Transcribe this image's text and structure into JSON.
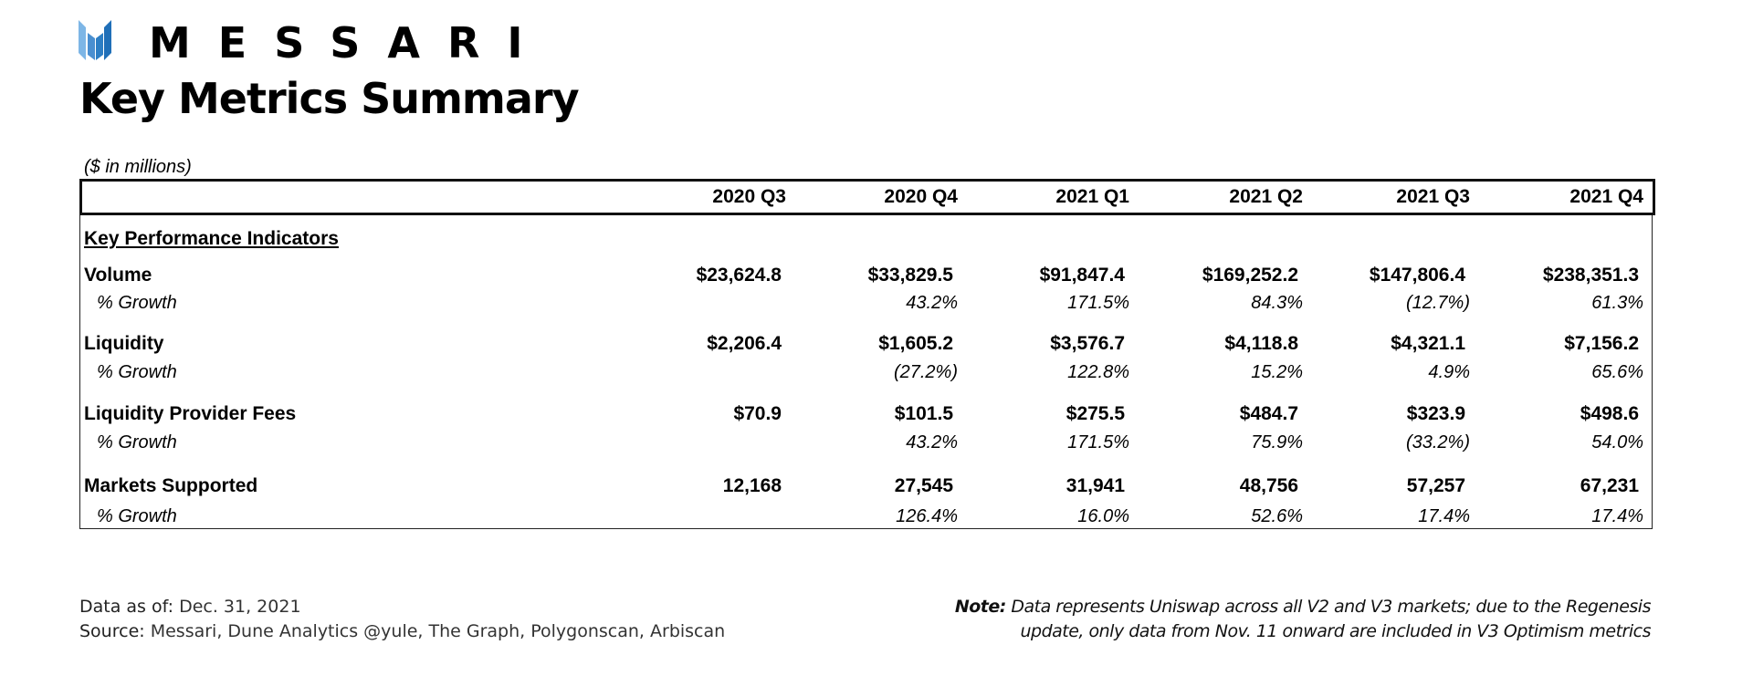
{
  "brand": {
    "name": "MESSARI",
    "colors": [
      "#7db6e6",
      "#4a8fd0",
      "#1f6fb8"
    ]
  },
  "title": "Key Metrics Summary",
  "units": "($ in millions)",
  "columns": [
    "2020 Q3",
    "2020 Q4",
    "2021 Q1",
    "2021 Q2",
    "2021 Q3",
    "2021 Q4"
  ],
  "section": "Key Performance Indicators",
  "rows": [
    {
      "label": "Volume",
      "values": [
        "$23,624.8",
        "$33,829.5",
        "$91,847.4",
        "$169,252.2",
        "$147,806.4",
        "$238,351.3"
      ],
      "growth_label": "% Growth",
      "growth": [
        "",
        "43.2%",
        "171.5%",
        "84.3%",
        "(12.7%)",
        "61.3%"
      ]
    },
    {
      "label": "Liquidity",
      "values": [
        "$2,206.4",
        "$1,605.2",
        "$3,576.7",
        "$4,118.8",
        "$4,321.1",
        "$7,156.2"
      ],
      "growth_label": "% Growth",
      "growth": [
        "",
        "(27.2%)",
        "122.8%",
        "15.2%",
        "4.9%",
        "65.6%"
      ]
    },
    {
      "label": "Liquidity Provider Fees",
      "values": [
        "$70.9",
        "$101.5",
        "$275.5",
        "$484.7",
        "$323.9",
        "$498.6"
      ],
      "growth_label": "% Growth",
      "growth": [
        "",
        "43.2%",
        "171.5%",
        "75.9%",
        "(33.2%)",
        "54.0%"
      ]
    },
    {
      "label": "Markets Supported",
      "values": [
        "12,168",
        "27,545",
        "31,941",
        "48,756",
        "57,257",
        "67,231"
      ],
      "growth_label": "% Growth",
      "growth": [
        "",
        "126.4%",
        "16.0%",
        "52.6%",
        "17.4%",
        "17.4%"
      ]
    }
  ],
  "footer": {
    "data_as_of_label": "Data as of:",
    "data_as_of": "Dec. 31, 2021",
    "source_label": "Source:",
    "source": "Messari, Dune Analytics @yule, The Graph, Polygonscan, Arbiscan",
    "note_label": "Note:",
    "note_line1": "Data represents Uniswap across all V2 and V3 markets; due to the Regenesis",
    "note_line2": "update, only data from Nov. 11 onward are included in V3 Optimism metrics"
  }
}
